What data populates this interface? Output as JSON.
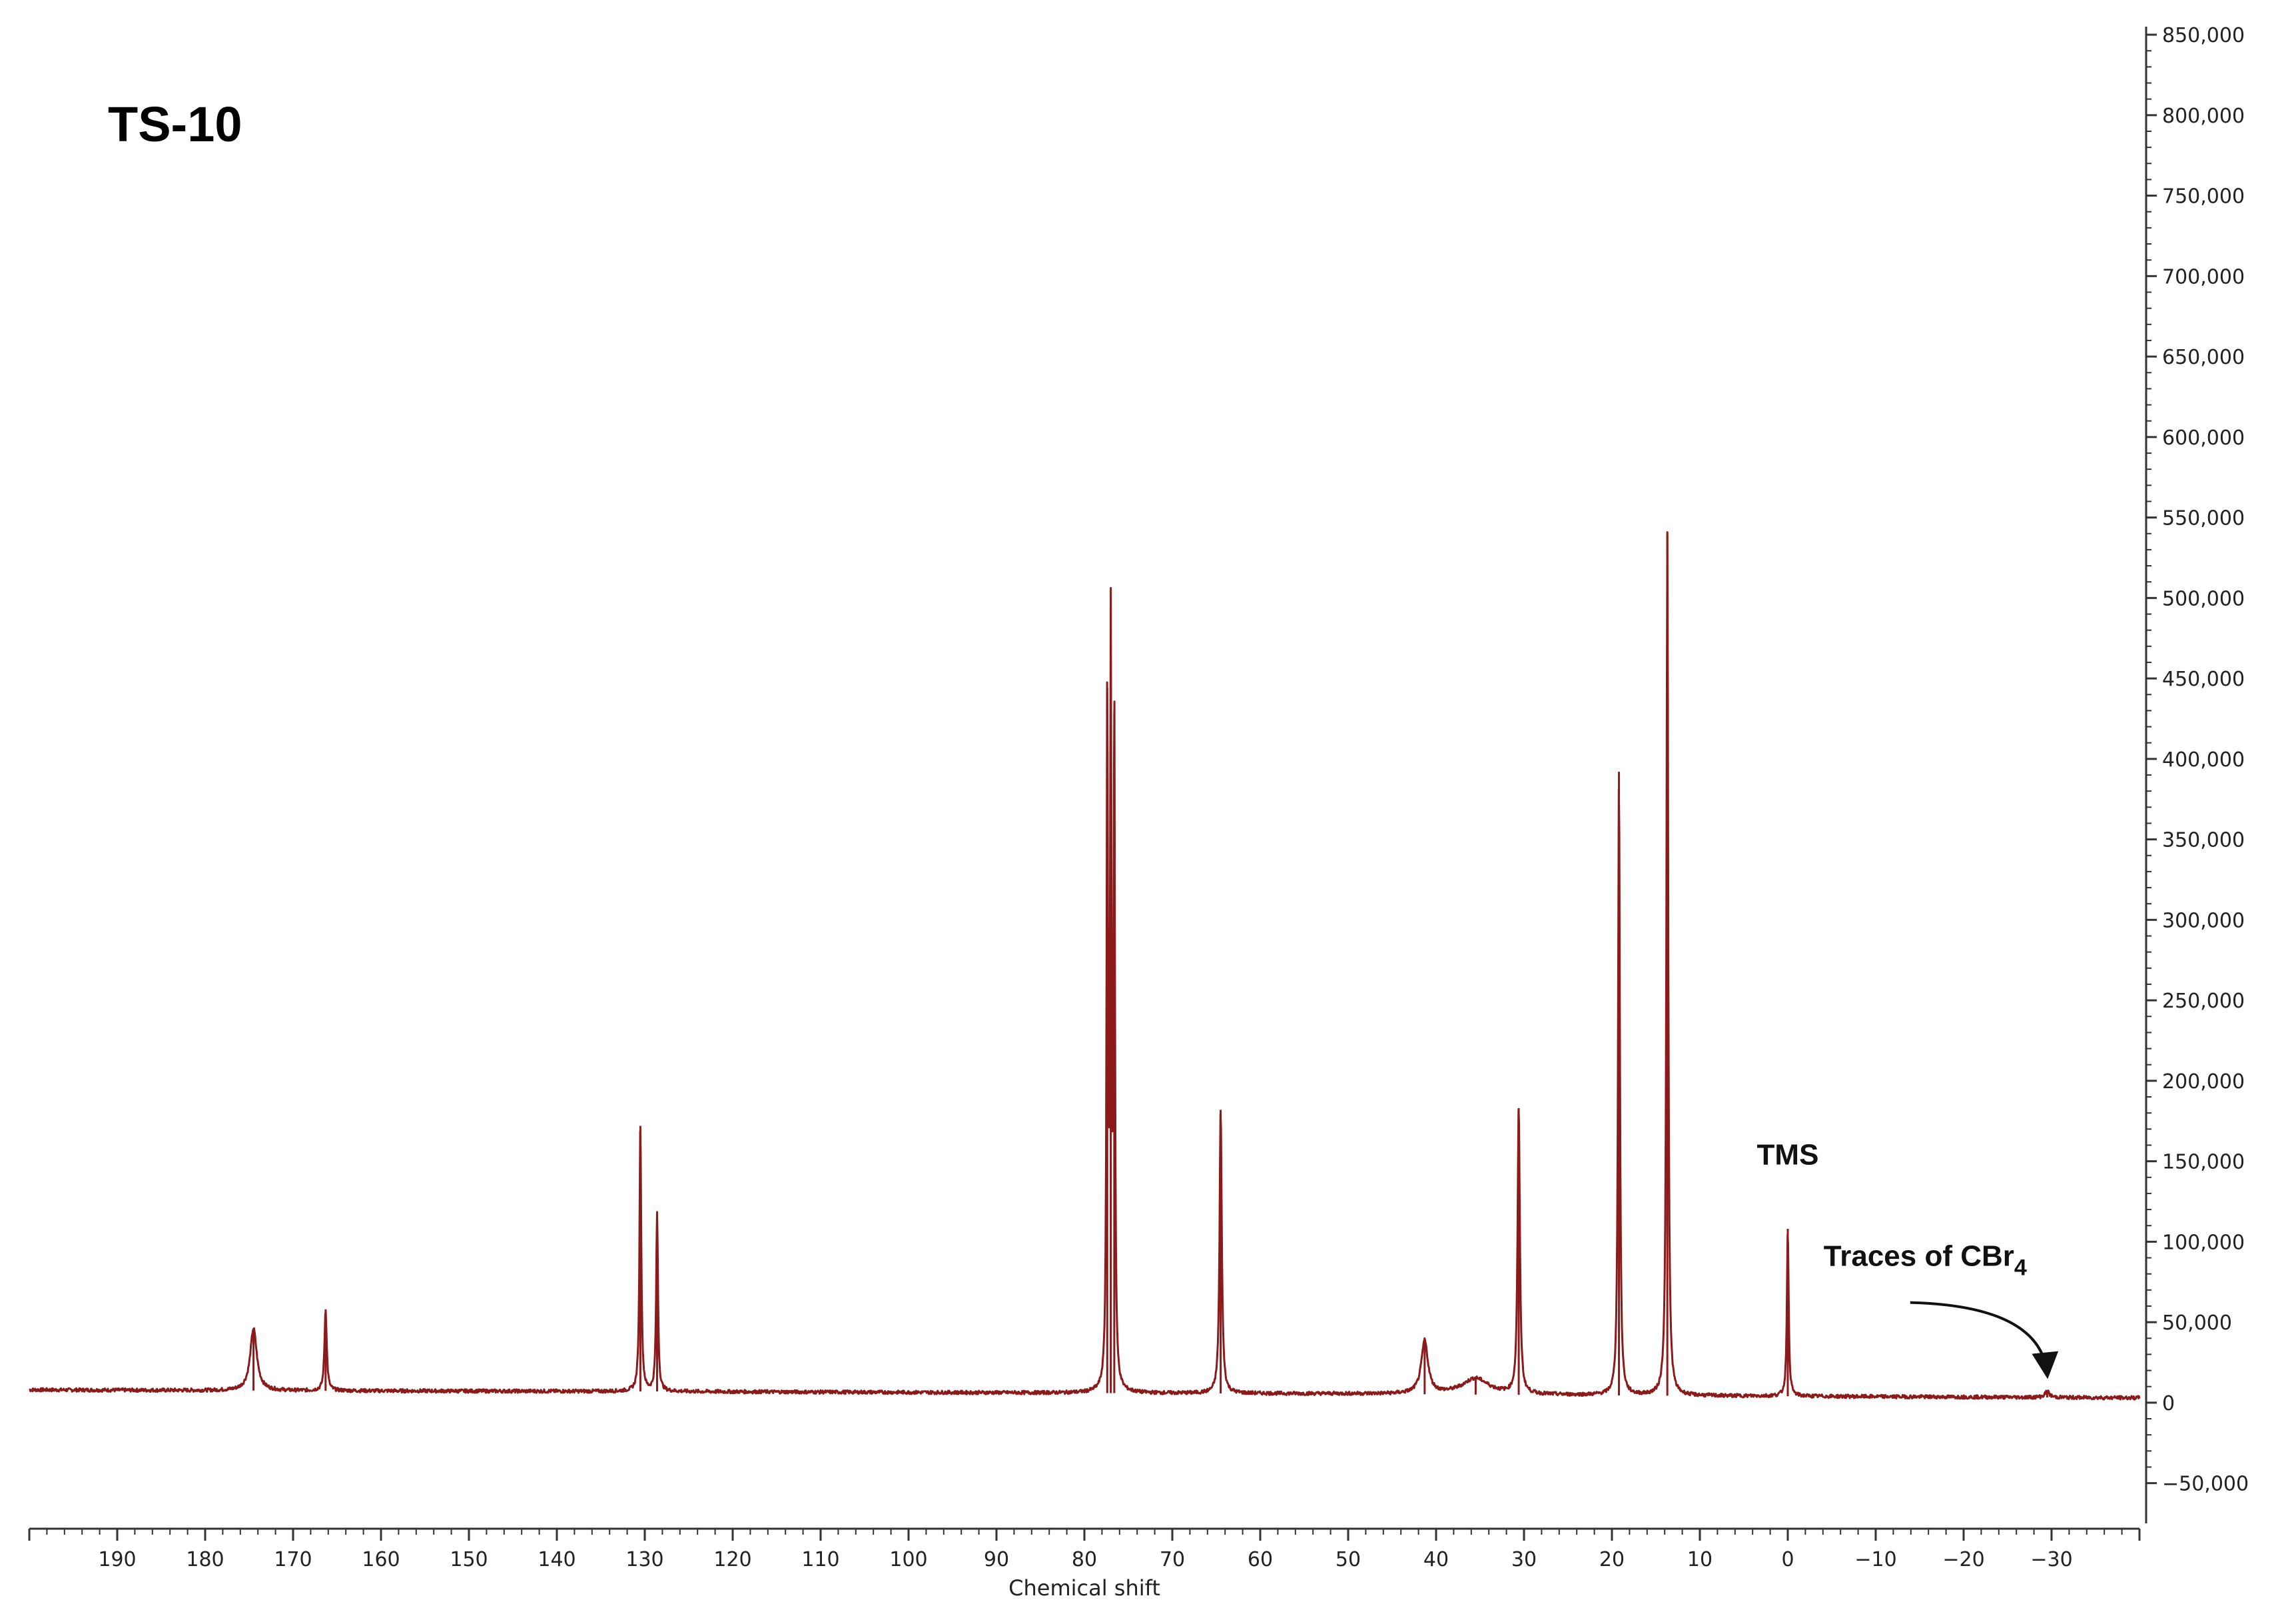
{
  "chart_data": {
    "type": "line",
    "title": "TS-10",
    "xlabel": "Chemical shift",
    "ylabel": "",
    "xlim": [
      200,
      -40
    ],
    "ylim": [
      -75000,
      855000
    ],
    "x_ticks": [
      190,
      180,
      170,
      160,
      150,
      140,
      130,
      120,
      110,
      100,
      90,
      80,
      70,
      60,
      50,
      40,
      30,
      20,
      10,
      0,
      -10,
      -20,
      -30
    ],
    "x_tick_labels": [
      "190",
      "180",
      "170",
      "160",
      "150",
      "140",
      "130",
      "120",
      "110",
      "100",
      "90",
      "80",
      "70",
      "60",
      "50",
      "40",
      "30",
      "20",
      "10",
      "0",
      "−10",
      "−20",
      "−30"
    ],
    "y_ticks": [
      850000,
      800000,
      750000,
      700000,
      650000,
      600000,
      550000,
      500000,
      450000,
      400000,
      350000,
      300000,
      250000,
      200000,
      150000,
      100000,
      50000,
      0,
      -50000
    ],
    "y_tick_labels": [
      "850,000",
      "800,000",
      "750,000",
      "700,000",
      "650,000",
      "600,000",
      "550,000",
      "500,000",
      "450,000",
      "400,000",
      "350,000",
      "300,000",
      "250,000",
      "200,000",
      "150,000",
      "100,000",
      "50,000",
      "0",
      "−50,000"
    ],
    "y_axis_side": "right",
    "grid": false,
    "legend": "none",
    "baseline": [
      {
        "x": 200,
        "y": 8000
      },
      {
        "x": 175,
        "y": 7500
      },
      {
        "x": 130,
        "y": 7000
      },
      {
        "x": 80,
        "y": 6000
      },
      {
        "x": 50,
        "y": 5500
      },
      {
        "x": 20,
        "y": 4500
      },
      {
        "x": 0,
        "y": 4000
      },
      {
        "x": -40,
        "y": 3000
      }
    ],
    "peaks": [
      {
        "x": 174.5,
        "y": 46000,
        "width": 0.45
      },
      {
        "x": 166.3,
        "y": 58000,
        "width": 0.15
      },
      {
        "x": 130.5,
        "y": 172000,
        "width": 0.12
      },
      {
        "x": 128.6,
        "y": 118000,
        "width": 0.12
      },
      {
        "x": 77.4,
        "y": 444000,
        "width": 0.09
      },
      {
        "x": 77.0,
        "y": 464000,
        "width": 0.09
      },
      {
        "x": 76.6,
        "y": 430000,
        "width": 0.09
      },
      {
        "x": 64.5,
        "y": 182000,
        "width": 0.15
      },
      {
        "x": 41.3,
        "y": 38000,
        "width": 0.45
      },
      {
        "x": 35.5,
        "y": 15000,
        "width": 1.8
      },
      {
        "x": 30.6,
        "y": 183000,
        "width": 0.15
      },
      {
        "x": 19.2,
        "y": 392000,
        "width": 0.12
      },
      {
        "x": 13.7,
        "y": 540000,
        "width": 0.12
      },
      {
        "x": 0.0,
        "y": 108000,
        "width": 0.12
      },
      {
        "x": -29.5,
        "y": 7000,
        "width": 0.3
      }
    ],
    "annotations": [
      {
        "text": "TMS",
        "x": 0.0,
        "y": 148000
      },
      {
        "text": "Traces of CBr",
        "subscript": "4",
        "x": -21.5,
        "y": 85000,
        "arrow_to": {
          "x": -29.5,
          "y": 18000
        }
      }
    ],
    "colors": {
      "line": "#8B1A1A",
      "axis": "#333333"
    }
  }
}
